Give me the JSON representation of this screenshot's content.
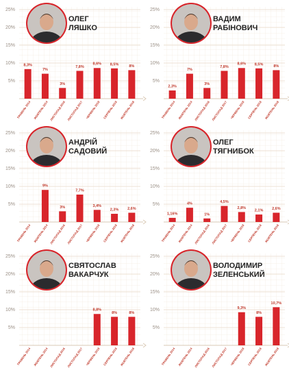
{
  "chart_data": [
    {
      "type": "bar",
      "title": [
        "ОЛЕГ",
        "ЛЯШКО"
      ],
      "categories": [
        "ТРАВЕНЬ 2014",
        "ЖОВТЕНЬ 2014",
        "ЛИСТОПАД 2016",
        "ЛИСТОПАД 2017",
        "ЧЕРВЕНЬ 2018",
        "СЕРПЕНЬ 2018",
        "ЖОВТЕНЬ 2018"
      ],
      "values": [
        8.3,
        7,
        3,
        7.8,
        8.6,
        8.5,
        8
      ],
      "value_labels": [
        "8,3%",
        "7%",
        "3%",
        "7,8%",
        "8,6%",
        "8,5%",
        "8%"
      ],
      "color": "#d8252b",
      "ylim": [
        0,
        25
      ],
      "yticks": [
        {
          "value": 5,
          "label": "5%"
        },
        {
          "value": 10,
          "label": "10%"
        },
        {
          "value": 15,
          "label": "15%"
        },
        {
          "value": 20,
          "label": "20%"
        },
        {
          "value": 25,
          "label": "25%"
        }
      ],
      "grid": true
    },
    {
      "type": "bar",
      "title": [
        "ВАДИМ",
        "РАБІНОВИЧ"
      ],
      "categories": [
        "ТРАВЕНЬ 2014",
        "ЖОВТЕНЬ 2014",
        "ЛИСТОПАД 2016",
        "ЛИСТОПАД 2017",
        "ЧЕРВЕНЬ 2018",
        "СЕРПЕНЬ 2018",
        "ЖОВТЕНЬ 2018"
      ],
      "values": [
        2.3,
        7,
        3,
        7.8,
        8.6,
        8.5,
        8
      ],
      "value_labels": [
        "2,3%",
        "7%",
        "3%",
        "7,8%",
        "8,6%",
        "8,5%",
        "8%"
      ],
      "color": "#d8252b",
      "ylim": [
        0,
        25
      ],
      "yticks": [
        {
          "value": 5,
          "label": "5%"
        },
        {
          "value": 10,
          "label": "10%"
        },
        {
          "value": 15,
          "label": "15%"
        },
        {
          "value": 20,
          "label": "20%"
        },
        {
          "value": 25,
          "label": "25%"
        }
      ],
      "grid": true
    },
    {
      "type": "bar",
      "title": [
        "АНДРІЙ",
        "САДОВИЙ"
      ],
      "categories": [
        "ТРАВЕНЬ 2014",
        "ЖОВТЕНЬ 2014",
        "ЛИСТОПАД 2016",
        "ЛИСТОПАД 2017",
        "ЧЕРВЕНЬ 2018",
        "СЕРПЕНЬ 2018",
        "ЖОВТЕНЬ 2018"
      ],
      "values": [
        null,
        9,
        3,
        7.7,
        3.4,
        2.3,
        2.6
      ],
      "value_labels": [
        null,
        "9%",
        "3%",
        "7,7%",
        "3,4%",
        "2,3%",
        "2,6%"
      ],
      "color": "#d8252b",
      "ylim": [
        0,
        25
      ],
      "yticks": [
        {
          "value": 5,
          "label": "5%"
        },
        {
          "value": 10,
          "label": "10%"
        },
        {
          "value": 15,
          "label": "15%"
        },
        {
          "value": 20,
          "label": "20%"
        },
        {
          "value": 25,
          "label": "25%"
        }
      ],
      "grid": true
    },
    {
      "type": "bar",
      "title": [
        "ОЛЕГ",
        "ТЯГНИБОК"
      ],
      "categories": [
        "ТРАВЕНЬ 2014",
        "ЖОВТЕНЬ 2014",
        "ЛИСТОПАД 2016",
        "ЛИСТОПАД 2017",
        "ЧЕРВЕНЬ 2018",
        "СЕРПЕНЬ 2018",
        "ЖОВТЕНЬ 2018"
      ],
      "values": [
        1.16,
        4,
        1,
        4.5,
        2.8,
        2.1,
        2.6
      ],
      "value_labels": [
        "1,16%",
        "4%",
        "1%",
        "4,5%",
        "2,8%",
        "2,1%",
        "2,6%"
      ],
      "color": "#d8252b",
      "ylim": [
        0,
        25
      ],
      "yticks": [
        {
          "value": 5,
          "label": "5%"
        },
        {
          "value": 10,
          "label": "10%"
        },
        {
          "value": 15,
          "label": "15%"
        },
        {
          "value": 20,
          "label": "20%"
        },
        {
          "value": 25,
          "label": "25%"
        }
      ],
      "grid": true
    },
    {
      "type": "bar",
      "title": [
        "СВЯТОСЛАВ",
        "ВАКАРЧУК"
      ],
      "categories": [
        "ТРАВЕНЬ 2014",
        "ЖОВТЕНЬ 2014",
        "ЛИСТОПАД 2016",
        "ЛИСТОПАД 2017",
        "ЧЕРВЕНЬ 2018",
        "СЕРПЕНЬ 2018",
        "ЖОВТЕНЬ 2018"
      ],
      "values": [
        null,
        null,
        null,
        null,
        8.8,
        8,
        8
      ],
      "value_labels": [
        null,
        null,
        null,
        null,
        "8,8%",
        "8%",
        "8%"
      ],
      "color": "#d8252b",
      "ylim": [
        0,
        25
      ],
      "yticks": [
        {
          "value": 5,
          "label": "5%"
        },
        {
          "value": 10,
          "label": "10%"
        },
        {
          "value": 15,
          "label": "15%"
        },
        {
          "value": 20,
          "label": "20%"
        },
        {
          "value": 25,
          "label": "25%"
        }
      ],
      "grid": true
    },
    {
      "type": "bar",
      "title": [
        "ВОЛОДИМИР",
        "ЗЕЛЕНСЬКИЙ"
      ],
      "categories": [
        "ТРАВЕНЬ 2014",
        "ЖОВТЕНЬ 2014",
        "ЛИСТОПАД 2016",
        "ЛИСТОПАД 2017",
        "ЧЕРВЕНЬ 2018",
        "СЕРПЕНЬ 2018",
        "ЖОВТЕНЬ 2018"
      ],
      "values": [
        null,
        null,
        null,
        null,
        9.3,
        8,
        10.7
      ],
      "value_labels": [
        null,
        null,
        null,
        null,
        "9,3%",
        "8%",
        "10,7%"
      ],
      "color": "#d8252b",
      "ylim": [
        0,
        25
      ],
      "yticks": [
        {
          "value": 5,
          "label": "5%"
        },
        {
          "value": 10,
          "label": "10%"
        },
        {
          "value": 15,
          "label": "15%"
        },
        {
          "value": 20,
          "label": "20%"
        },
        {
          "value": 25,
          "label": "25%"
        }
      ],
      "grid": true
    }
  ]
}
